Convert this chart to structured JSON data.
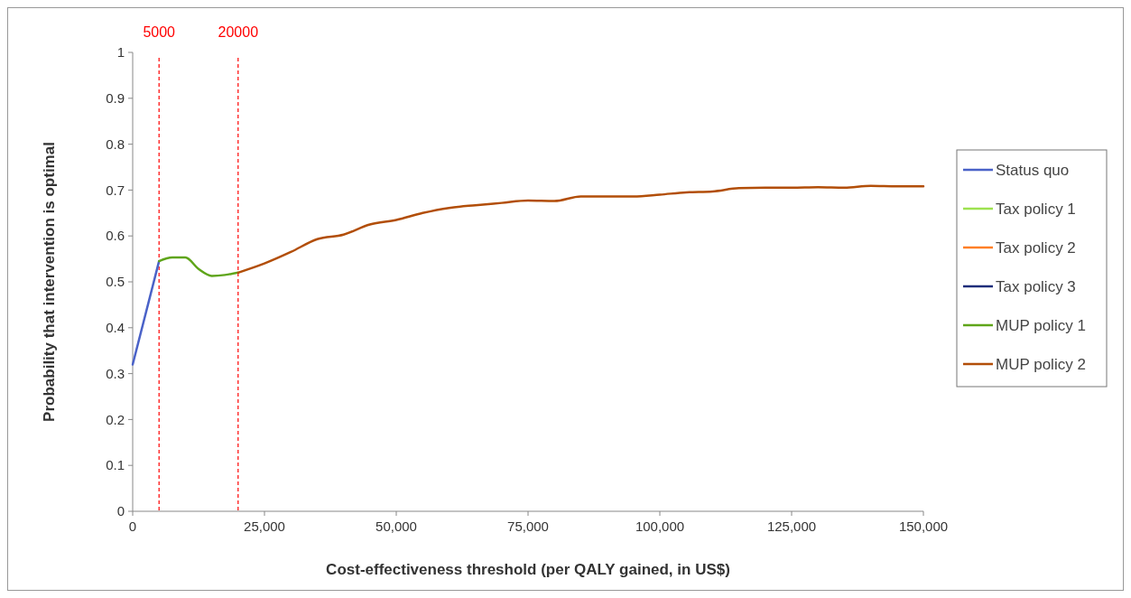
{
  "chart_data": {
    "type": "line",
    "xlabel": "Cost-effectiveness threshold (per QALY gained, in US$)",
    "ylabel": "Probability that intervention is optimal",
    "xlim": [
      0,
      150000
    ],
    "xticks": [
      0,
      {
        "value": 25000,
        "label": "25,000"
      },
      {
        "value": 50000,
        "label": "50,000"
      },
      {
        "value": 75000,
        "label": "75,000"
      },
      {
        "value": 100000,
        "label": "100,000"
      },
      {
        "value": 125000,
        "label": "125,000"
      },
      {
        "value": 150000,
        "label": "150,000"
      }
    ],
    "ylim": [
      0,
      1
    ],
    "yticks": [
      0,
      0.1,
      0.2,
      0.3,
      0.4,
      0.5,
      0.6,
      0.7,
      0.8,
      0.9,
      1
    ],
    "grid": false,
    "legend": "right",
    "marker": "none",
    "line_style": "solid",
    "ref_lines": [
      {
        "axis": "x",
        "value": 5000,
        "label": "5000",
        "color": "#ff0000",
        "line_style": "dashed"
      },
      {
        "axis": "x",
        "value": 20000,
        "label": "20000",
        "color": "#ff0000",
        "line_style": "dashed"
      }
    ],
    "series": [
      {
        "name": "Status quo",
        "color": "#4a62c8",
        "x": [
          0,
          5000
        ],
        "values": [
          0.32,
          0.545
        ]
      },
      {
        "name": "Tax policy 1",
        "color": "#9de24f"
      },
      {
        "name": "Tax policy 2",
        "color": "#ff7f27"
      },
      {
        "name": "Tax policy 3",
        "color": "#1f2d7a"
      },
      {
        "name": "MUP policy 1",
        "color": "#5fa51a",
        "x": [
          5000,
          7500,
          10000,
          12500,
          15000,
          17500,
          20000
        ],
        "values": [
          0.545,
          0.553,
          0.553,
          0.528,
          0.513,
          0.515,
          0.52
        ]
      },
      {
        "name": "MUP policy 2",
        "color": "#b24e08",
        "x": [
          20000,
          25000,
          30000,
          35000,
          40000,
          45000,
          50000,
          55000,
          60000,
          65000,
          70000,
          75000,
          80000,
          85000,
          90000,
          95000,
          100000,
          105000,
          110000,
          115000,
          120000,
          125000,
          130000,
          135000,
          140000,
          145000,
          150000
        ],
        "values": [
          0.52,
          0.54,
          0.565,
          0.593,
          0.603,
          0.625,
          0.635,
          0.65,
          0.661,
          0.667,
          0.672,
          0.677,
          0.676,
          0.686,
          0.686,
          0.686,
          0.69,
          0.695,
          0.697,
          0.704,
          0.705,
          0.705,
          0.706,
          0.705,
          0.709,
          0.708,
          0.708
        ]
      }
    ]
  }
}
